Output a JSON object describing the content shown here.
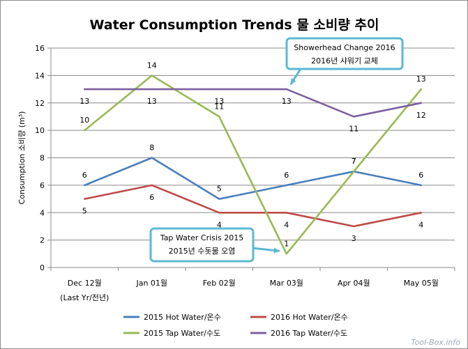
{
  "chart_data": {
    "type": "line",
    "title": "Water Consumption Trends  물 소비량 추이",
    "ylabel": "Consumption 소비량 (m³)",
    "xlabel": "",
    "ylim": [
      0,
      16
    ],
    "yticks": [
      0,
      2,
      4,
      6,
      8,
      10,
      12,
      14,
      16
    ],
    "grid": true,
    "legend_position": "bottom",
    "categories": [
      [
        "Dec 12월",
        "(Last Yr/전년)"
      ],
      [
        "Jan 01월"
      ],
      [
        "Feb 02월"
      ],
      [
        "Mar 03월"
      ],
      [
        "Apr 04월"
      ],
      [
        "May 05월"
      ]
    ],
    "series": [
      {
        "name": "2015 Hot Water/온수",
        "color": "#4a7ebb",
        "values": [
          6,
          8,
          5,
          6,
          7,
          6
        ],
        "label_pos": "above"
      },
      {
        "name": "2016 Hot Water/온수",
        "color": "#be4b48",
        "values": [
          5,
          6,
          4,
          4,
          3,
          4
        ],
        "label_pos": "below"
      },
      {
        "name": "2015 Tap Water/수도",
        "color": "#98b954",
        "values": [
          10,
          14,
          11,
          1,
          7,
          13
        ],
        "label_pos": "above"
      },
      {
        "name": "2016 Tap Water/수도",
        "color": "#7d60a0",
        "values": [
          13,
          13,
          13,
          13,
          11,
          12
        ],
        "label_pos": "below"
      }
    ],
    "annotations": [
      {
        "lines": [
          "Showerhead Change 2016",
          "2016년 샤워기 교체"
        ],
        "target": {
          "series": 3,
          "index": 3
        }
      },
      {
        "lines": [
          "Tap Water Crisis 2015",
          "2015년 수돗물 오염"
        ],
        "target": {
          "series": 2,
          "index": 3
        }
      }
    ]
  },
  "watermark": "Tool-Box.info"
}
